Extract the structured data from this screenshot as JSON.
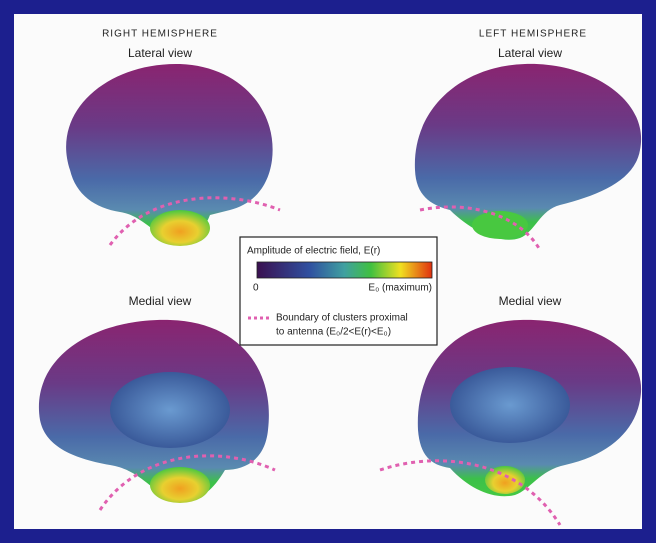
{
  "figure": {
    "right_hemisphere": {
      "title": "RIGHT HEMISPHERE",
      "lateral": "Lateral view",
      "medial": "Medial view"
    },
    "left_hemisphere": {
      "title": "LEFT HEMISPHERE",
      "lateral": "Lateral view",
      "medial": "Medial view"
    },
    "legend": {
      "title": "Amplitude of electric field, E(r)",
      "min_label": "0",
      "max_label": "E₀ (maximum)",
      "boundary_label": [
        "Boundary of clusters proximal",
        "to antenna (E₀/2<E(r)<E₀)"
      ]
    }
  }
}
